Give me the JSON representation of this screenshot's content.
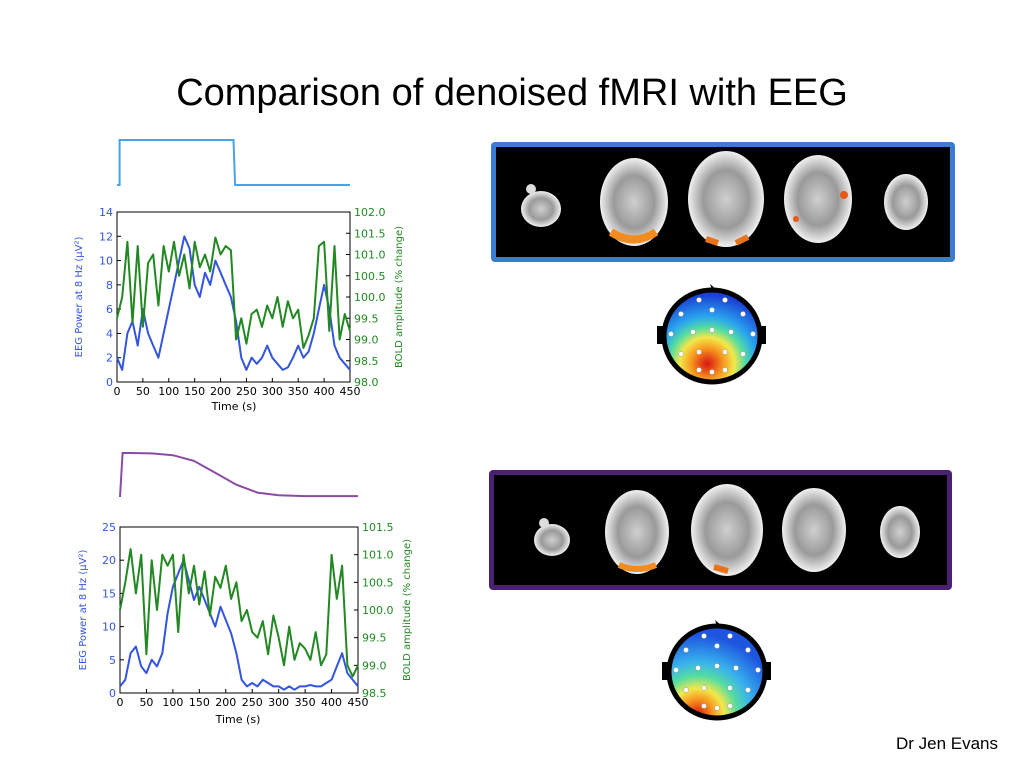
{
  "slide": {
    "title": "Comparison of denoised fMRI with EEG",
    "author": "Dr Jen Evans"
  },
  "colors": {
    "eeg": "#3355dd",
    "bold": "#228822",
    "box_top": "#3b7bd4",
    "box_bottom": "#4a2070",
    "regressor_top": "#4aa3e6",
    "regressor_bottom": "#8a4aa8"
  },
  "chart_data": [
    {
      "type": "line",
      "xlabel": "Time (s)",
      "ylabel": "EEG Power at 8 Hz (μV²)",
      "y2label": "BOLD amplitude (% change)",
      "xlim": [
        0,
        450
      ],
      "ylim": [
        0,
        14
      ],
      "y2lim": [
        98.0,
        102.0
      ],
      "xticks": [
        "0",
        "50",
        "100",
        "150",
        "200",
        "250",
        "300",
        "350",
        "400",
        "450"
      ],
      "yticks": [
        "0",
        "2",
        "4",
        "6",
        "8",
        "10",
        "12",
        "14"
      ],
      "y2ticks": [
        "98.0",
        "98.5",
        "99.0",
        "99.5",
        "100.0",
        "100.5",
        "101.0",
        "101.5",
        "102.0"
      ],
      "regressor": {
        "x": [
          0,
          5,
          5,
          225,
          228,
          450
        ],
        "y": [
          0,
          0,
          1,
          1,
          0,
          0
        ]
      },
      "series": [
        {
          "axis": "left",
          "x": [
            0,
            10,
            20,
            30,
            40,
            50,
            60,
            70,
            80,
            90,
            100,
            110,
            120,
            130,
            140,
            150,
            160,
            170,
            180,
            190,
            200,
            210,
            220,
            230,
            240,
            250,
            260,
            270,
            280,
            290,
            300,
            310,
            320,
            330,
            340,
            350,
            360,
            370,
            380,
            390,
            400,
            410,
            420,
            430,
            440,
            450
          ],
          "values": [
            2,
            1,
            4,
            5,
            3,
            6,
            4,
            3,
            2,
            4,
            6,
            8,
            10,
            12,
            11,
            8,
            7,
            9,
            8,
            10,
            9,
            8,
            7,
            5,
            2,
            1,
            2,
            1.5,
            2,
            3,
            2,
            1.5,
            1,
            1.2,
            2,
            3,
            2,
            2.5,
            4,
            6,
            8,
            6,
            3,
            2,
            1.5,
            1
          ]
        },
        {
          "axis": "right",
          "x": [
            0,
            10,
            20,
            30,
            40,
            50,
            60,
            70,
            80,
            90,
            100,
            110,
            120,
            130,
            140,
            150,
            160,
            170,
            180,
            190,
            200,
            210,
            220,
            230,
            240,
            250,
            260,
            270,
            280,
            290,
            300,
            310,
            320,
            330,
            340,
            350,
            360,
            370,
            380,
            390,
            400,
            410,
            420,
            430,
            440,
            450
          ],
          "values": [
            99.5,
            100.0,
            101.3,
            99.4,
            101.2,
            99.3,
            100.8,
            101.0,
            99.8,
            101.2,
            100.6,
            101.3,
            100.5,
            101.0,
            100.2,
            101.3,
            100.7,
            101.0,
            100.6,
            101.4,
            101.0,
            101.2,
            101.1,
            99.0,
            99.5,
            98.9,
            99.6,
            99.7,
            99.3,
            99.8,
            99.5,
            100.0,
            99.3,
            99.9,
            99.5,
            99.7,
            98.8,
            99.1,
            99.5,
            101.2,
            101.3,
            99.2,
            101.2,
            99.0,
            99.6,
            99.2
          ]
        }
      ]
    },
    {
      "type": "line",
      "xlabel": "Time (s)",
      "ylabel": "EEG Power at 8 Hz (μV²)",
      "y2label": "BOLD amplitude (% change)",
      "xlim": [
        0,
        450
      ],
      "ylim": [
        0,
        25
      ],
      "y2lim": [
        98.5,
        101.5
      ],
      "xticks": [
        "0",
        "50",
        "100",
        "150",
        "200",
        "250",
        "300",
        "350",
        "400",
        "450"
      ],
      "yticks": [
        "0",
        "5",
        "10",
        "15",
        "20",
        "25"
      ],
      "y2ticks": [
        "98.5",
        "99.0",
        "99.5",
        "100.0",
        "100.5",
        "101.0",
        "101.5"
      ],
      "regressor": {
        "x": [
          0,
          5,
          20,
          60,
          100,
          140,
          180,
          220,
          260,
          300,
          350,
          400,
          450
        ],
        "y": [
          0,
          1,
          1,
          0.99,
          0.95,
          0.82,
          0.55,
          0.28,
          0.1,
          0.04,
          0.02,
          0.02,
          0.02
        ]
      },
      "series": [
        {
          "axis": "left",
          "x": [
            0,
            10,
            20,
            30,
            40,
            50,
            60,
            70,
            80,
            90,
            100,
            110,
            120,
            130,
            140,
            150,
            160,
            170,
            180,
            190,
            200,
            210,
            220,
            230,
            240,
            250,
            260,
            270,
            280,
            290,
            300,
            310,
            320,
            330,
            340,
            350,
            360,
            370,
            380,
            390,
            400,
            410,
            420,
            430,
            440,
            450
          ],
          "values": [
            1,
            2,
            6,
            7,
            4,
            3,
            5,
            4,
            6,
            12,
            16,
            18,
            20,
            17,
            14,
            16,
            14,
            12,
            10,
            13,
            11,
            9,
            6,
            2,
            1,
            1.5,
            1,
            2,
            1.5,
            1,
            1,
            0.5,
            1,
            0.5,
            1,
            1,
            1.2,
            1,
            1,
            1.5,
            2,
            4,
            6,
            3,
            2,
            1
          ]
        },
        {
          "axis": "right",
          "x": [
            0,
            10,
            20,
            30,
            40,
            50,
            60,
            70,
            80,
            90,
            100,
            110,
            120,
            130,
            140,
            150,
            160,
            170,
            180,
            190,
            200,
            210,
            220,
            230,
            240,
            250,
            260,
            270,
            280,
            290,
            300,
            310,
            320,
            330,
            340,
            350,
            360,
            370,
            380,
            390,
            400,
            410,
            420,
            430,
            440,
            450
          ],
          "values": [
            100.0,
            100.5,
            101.1,
            100.3,
            101.0,
            99.2,
            100.9,
            100.0,
            101.0,
            100.8,
            101.0,
            99.6,
            101.0,
            100.3,
            100.8,
            100.1,
            100.7,
            99.9,
            100.6,
            100.4,
            100.8,
            100.2,
            100.5,
            99.8,
            100.0,
            99.6,
            99.5,
            99.8,
            99.2,
            99.9,
            99.5,
            99.0,
            99.7,
            99.1,
            99.4,
            99.3,
            99.1,
            99.6,
            99.0,
            99.2,
            101.0,
            100.2,
            100.8,
            99.0,
            98.8,
            99.0
          ]
        }
      ]
    }
  ]
}
